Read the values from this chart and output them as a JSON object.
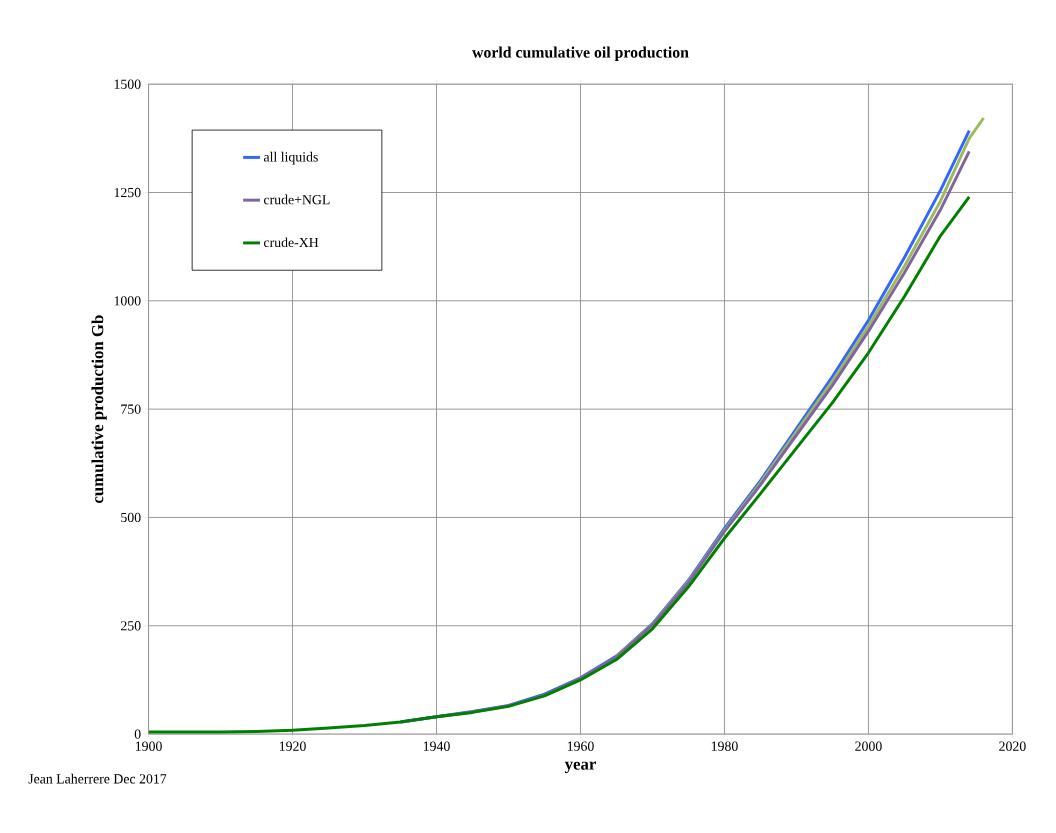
{
  "chart_data": {
    "type": "line",
    "title": "world cumulative oil production",
    "xlabel": "year",
    "ylabel": "cumulative production Gb",
    "annotations": [
      "Jean Laherrere Dec 2017"
    ],
    "xlim": [
      1900,
      2020
    ],
    "xticks": [
      1900,
      1920,
      1940,
      1960,
      1980,
      2000,
      2020
    ],
    "ylim": [
      0,
      1500
    ],
    "yticks": [
      0,
      250,
      500,
      750,
      1000,
      1250,
      1500
    ],
    "grid": true,
    "legend": "top left",
    "marker": "none",
    "line_style": "solid",
    "series": [
      {
        "name": "all liquids",
        "color": "#3366ff",
        "x": [
          1935,
          1940,
          1945,
          1950,
          1955,
          1960,
          1965,
          1970,
          1975,
          1980,
          1985,
          1990,
          1995,
          2000,
          2005,
          2010,
          2014
        ],
        "values": [
          28,
          40,
          52,
          66,
          92,
          130,
          180,
          255,
          355,
          475,
          585,
          705,
          825,
          955,
          1100,
          1255,
          1393
        ]
      },
      {
        "color": "#9bbb59",
        "x": [
          1965,
          1970,
          1975,
          1980,
          1985,
          1990,
          1995,
          2000,
          2005,
          2010,
          2014,
          2016
        ],
        "values": [
          180,
          253,
          352,
          470,
          580,
          698,
          815,
          942,
          1080,
          1230,
          1375,
          1422
        ]
      },
      {
        "name": "crude+NGL",
        "color": "#8064a2",
        "x": [
          1935,
          1940,
          1945,
          1950,
          1955,
          1960,
          1965,
          1970,
          1975,
          1980,
          1985,
          1990,
          1995,
          2000,
          2005,
          2010,
          2014
        ],
        "values": [
          28,
          40,
          51,
          65,
          90,
          128,
          178,
          252,
          350,
          468,
          575,
          690,
          805,
          930,
          1065,
          1210,
          1345
        ]
      },
      {
        "name": "crude-XH",
        "color": "#008000",
        "x": [
          1900,
          1905,
          1910,
          1915,
          1920,
          1925,
          1930,
          1935,
          1940,
          1945,
          1950,
          1955,
          1960,
          1965,
          1970,
          1975,
          1980,
          1985,
          1990,
          1995,
          2000,
          2005,
          2010,
          2014
        ],
        "values": [
          5,
          5,
          5,
          6,
          9,
          14,
          20,
          28,
          40,
          50,
          64,
          88,
          125,
          172,
          243,
          340,
          452,
          555,
          660,
          765,
          880,
          1010,
          1150,
          1240
        ]
      }
    ]
  }
}
